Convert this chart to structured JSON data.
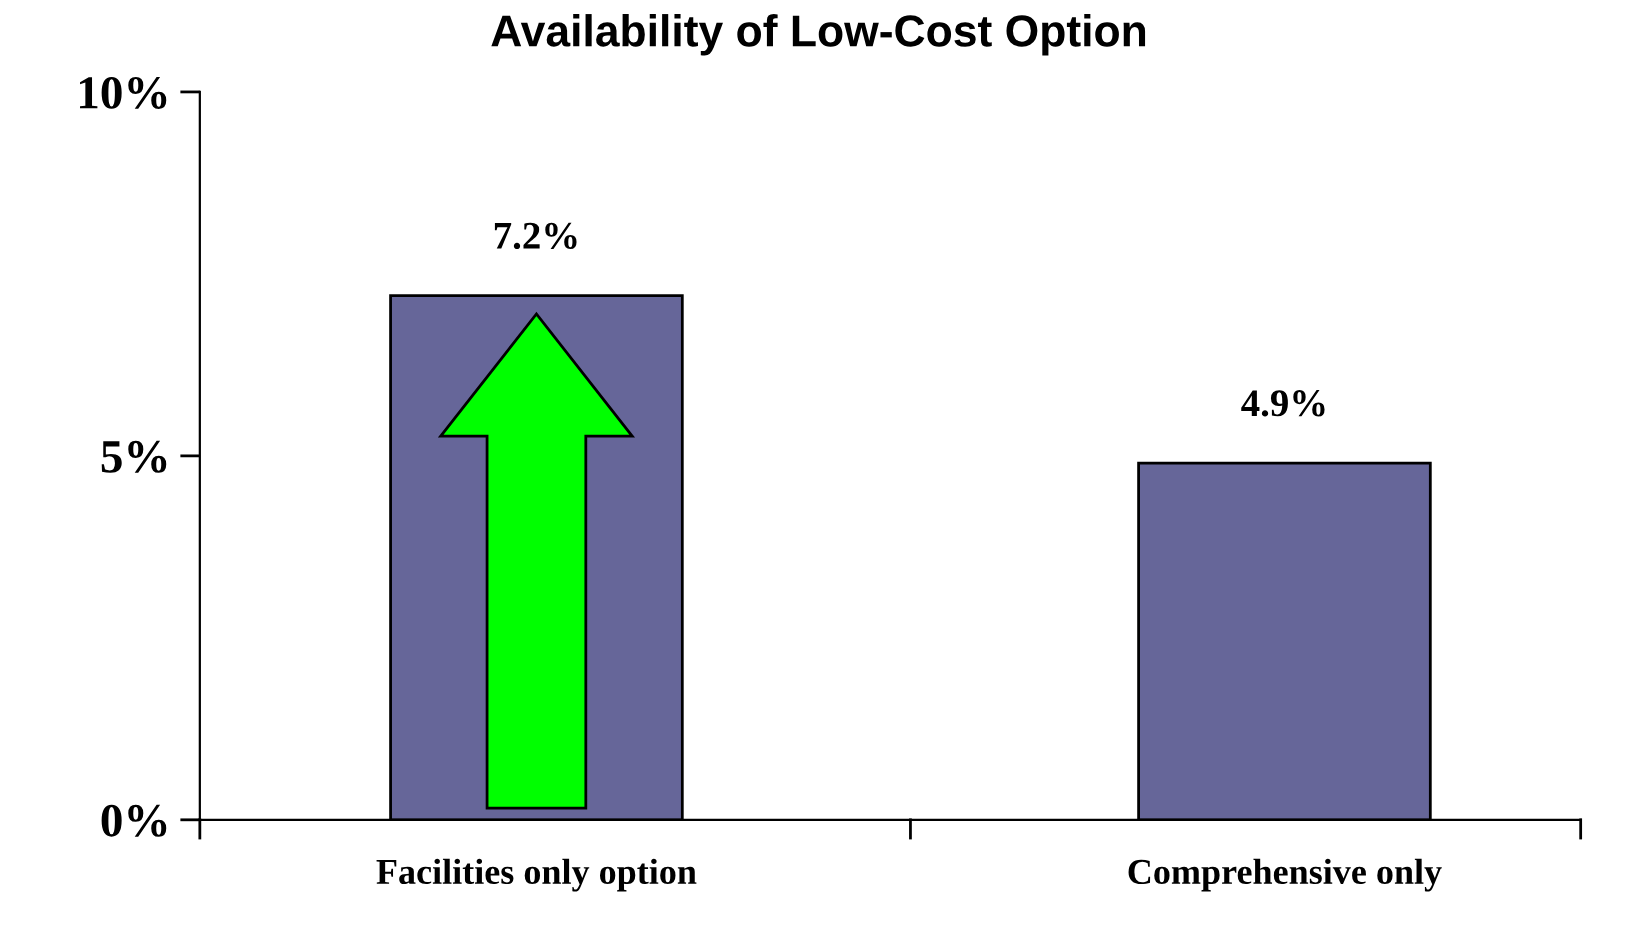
{
  "chart_data": {
    "type": "bar",
    "title": "Availability of Low-Cost Option",
    "categories": [
      "Facilities only option",
      "Comprehensive only"
    ],
    "values": [
      7.2,
      4.9
    ],
    "color": "#666699",
    "value_labels": [
      "7.2%",
      "4.9%"
    ],
    "ylim": [
      0,
      10
    ],
    "yticks": [
      {
        "value": 0,
        "label": "0%"
      },
      {
        "value": 5,
        "label": "5%"
      },
      {
        "value": 10,
        "label": "10%"
      }
    ],
    "grid": false,
    "legend": false
  }
}
